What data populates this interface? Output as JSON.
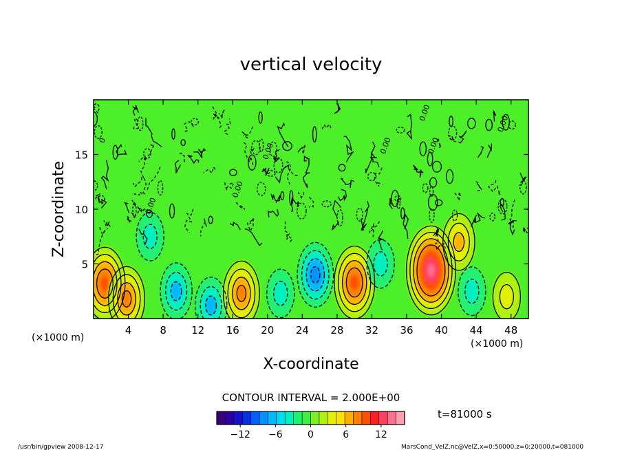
{
  "chart_data": {
    "type": "heatmap",
    "title": "vertical velocity",
    "xlabel": "X-coordinate",
    "ylabel": "Z-coordinate",
    "x_unit_label": "(×1000 m)",
    "x_unit_label_right": "(×1000 m)",
    "xlim": [
      0,
      50
    ],
    "ylim": [
      0,
      20
    ],
    "x_ticks": [
      4,
      8,
      12,
      16,
      20,
      24,
      28,
      32,
      36,
      40,
      44,
      48
    ],
    "x_tick_labels": [
      "4",
      "8",
      "12",
      "16",
      "20",
      "24",
      "28",
      "32",
      "36",
      "40",
      "44",
      "48"
    ],
    "y_ticks": [
      5,
      10,
      15
    ],
    "y_tick_labels": [
      "5",
      "10",
      "15"
    ],
    "contour_interval_text": "CONTOUR INTERVAL = 2.000E+00",
    "time_text": "t=81000 s",
    "colorbar": {
      "range": [
        -16,
        16
      ],
      "ticks": [
        -12,
        -6,
        0,
        6,
        12
      ],
      "tick_labels": [
        "−12",
        "−6",
        "0",
        "6",
        "12"
      ],
      "colors": [
        "#3a007a",
        "#2a00a0",
        "#1a10c8",
        "#0030e8",
        "#0060ff",
        "#0090ff",
        "#00b8ff",
        "#00dcf0",
        "#00f0c0",
        "#20f070",
        "#40f040",
        "#80f020",
        "#b0f010",
        "#e0f000",
        "#ffe000",
        "#ffb000",
        "#ff8000",
        "#ff5000",
        "#ff2020",
        "#ff4060",
        "#ff7090",
        "#ffa0b0"
      ]
    },
    "contour_labels": [
      "0.00",
      "0.00",
      "0.00",
      "0.00",
      "0.00",
      "0.00",
      "0.00",
      "0"
    ],
    "features": [
      {
        "x": 1.3,
        "z": 3.2,
        "value": 10
      },
      {
        "x": 3.8,
        "z": 1.8,
        "value": 8
      },
      {
        "x": 6.5,
        "z": 7.5,
        "value": -4
      },
      {
        "x": 9.5,
        "z": 2.5,
        "value": -6
      },
      {
        "x": 13.5,
        "z": 1.2,
        "value": -6
      },
      {
        "x": 17.0,
        "z": 2.3,
        "value": 8
      },
      {
        "x": 21.5,
        "z": 2.3,
        "value": -4
      },
      {
        "x": 25.5,
        "z": 4.0,
        "value": -8
      },
      {
        "x": 30.0,
        "z": 3.3,
        "value": 10
      },
      {
        "x": 33.0,
        "z": 5.0,
        "value": -4
      },
      {
        "x": 38.8,
        "z": 4.4,
        "value": 14
      },
      {
        "x": 42.0,
        "z": 7.0,
        "value": 6
      },
      {
        "x": 43.5,
        "z": 2.5,
        "value": -4
      },
      {
        "x": 47.5,
        "z": 2.0,
        "value": 4
      }
    ]
  },
  "footer": {
    "left": "/usr/bin/gpview   2008-12-17",
    "right": "MarsCond_VelZ.nc@VelZ,x=0:50000,z=0:20000,t=081000"
  }
}
